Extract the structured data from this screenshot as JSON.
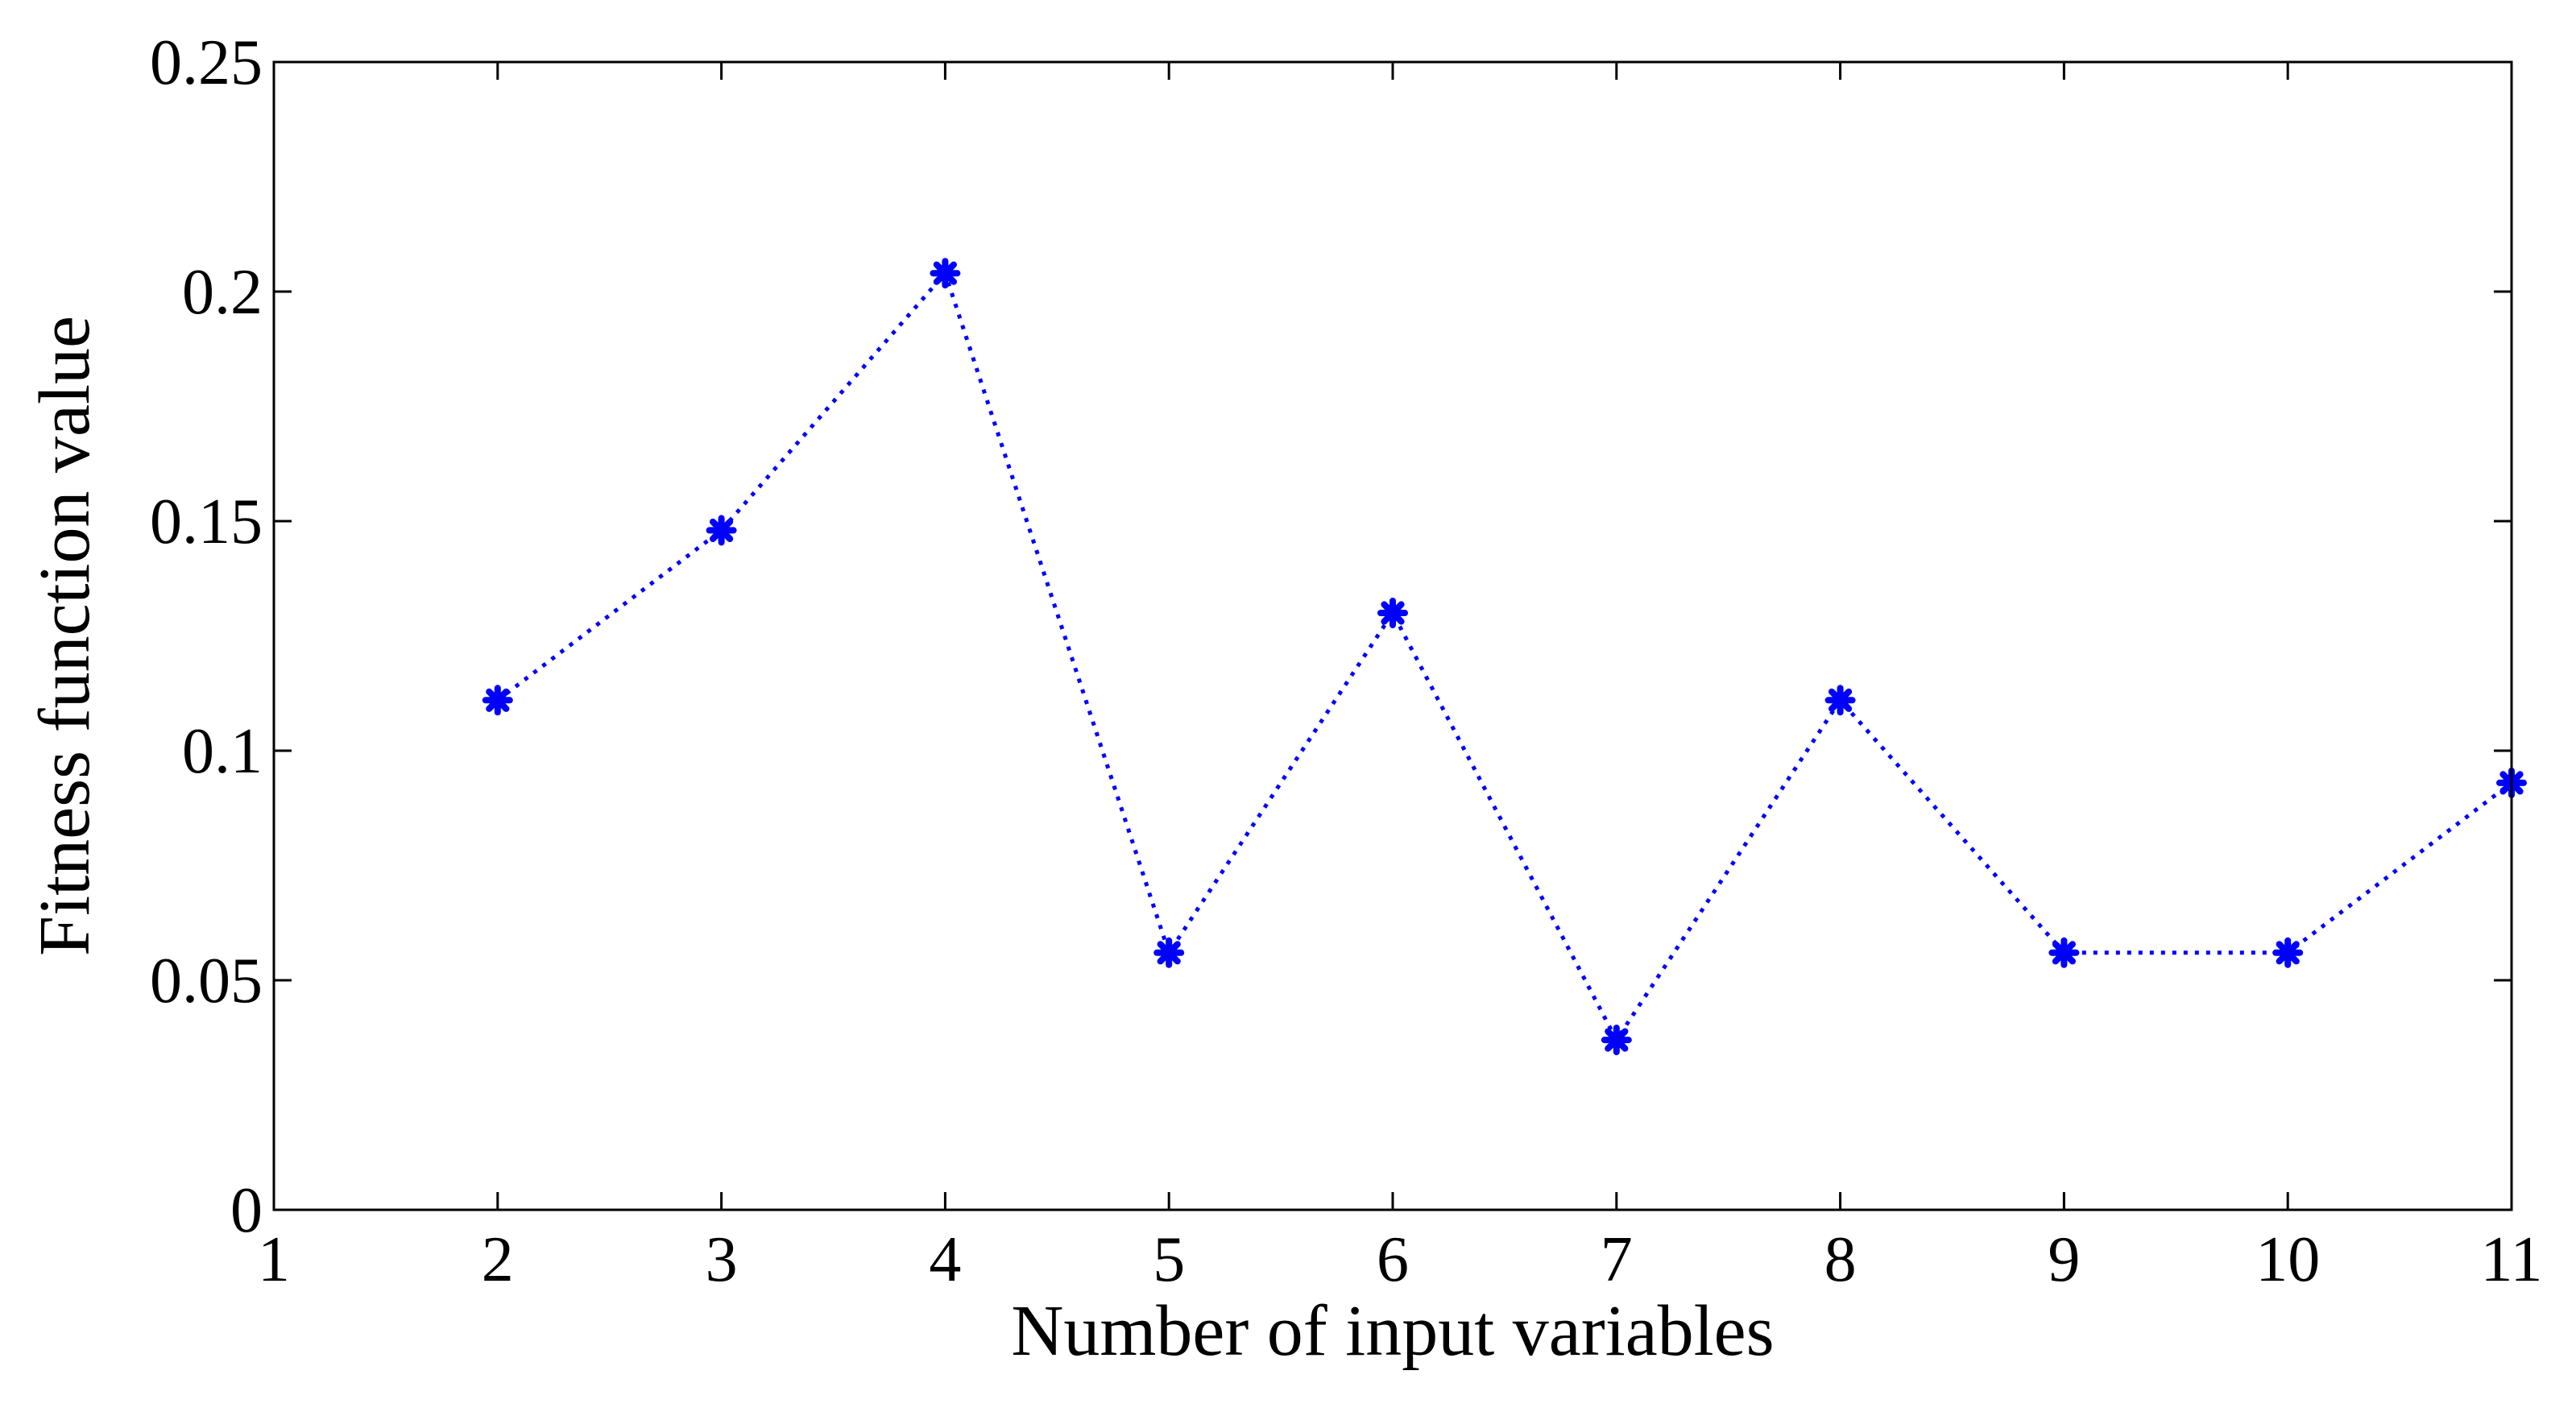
{
  "chart_data": {
    "type": "line",
    "title": "",
    "xlabel": "Number of input variables",
    "ylabel": "Fitness function value",
    "xlim": [
      1,
      11
    ],
    "ylim": [
      0,
      0.25
    ],
    "x_ticks": [
      "1",
      "2",
      "3",
      "4",
      "5",
      "6",
      "7",
      "8",
      "9",
      "10",
      "11"
    ],
    "y_ticks": [
      "0",
      "0.05",
      "0.1",
      "0.15",
      "0.2",
      "0.25"
    ],
    "grid": false,
    "legend": "none",
    "series": [
      {
        "color": "#0000ff",
        "line_style": "dotted",
        "marker": "asterisk",
        "x": [
          2,
          3,
          4,
          5,
          6,
          7,
          8,
          9,
          10,
          11
        ],
        "y": [
          0.111,
          0.148,
          0.204,
          0.056,
          0.13,
          0.037,
          0.111,
          0.056,
          0.056,
          0.093
        ]
      }
    ]
  }
}
